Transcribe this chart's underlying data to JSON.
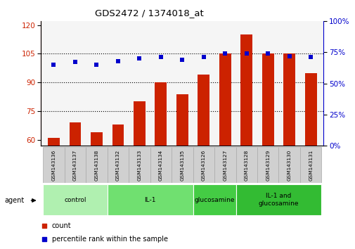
{
  "title": "GDS2472 / 1374018_at",
  "samples": [
    "GSM143136",
    "GSM143137",
    "GSM143138",
    "GSM143132",
    "GSM143133",
    "GSM143134",
    "GSM143135",
    "GSM143126",
    "GSM143127",
    "GSM143128",
    "GSM143129",
    "GSM143130",
    "GSM143131"
  ],
  "counts": [
    61,
    69,
    64,
    68,
    80,
    90,
    84,
    94,
    105,
    115,
    105,
    105,
    95
  ],
  "percentiles": [
    65,
    67,
    65,
    68,
    70,
    71,
    69,
    71,
    74,
    74,
    74,
    72,
    71
  ],
  "groups": [
    {
      "label": "control",
      "start": 0,
      "end": 3,
      "color": "#b0f0b0"
    },
    {
      "label": "IL-1",
      "start": 3,
      "end": 7,
      "color": "#70e070"
    },
    {
      "label": "glucosamine",
      "start": 7,
      "end": 9,
      "color": "#44cc44"
    },
    {
      "label": "IL-1 and\nglucosamine",
      "start": 9,
      "end": 13,
      "color": "#33bb33"
    }
  ],
  "bar_color": "#cc2200",
  "dot_color": "#0000cc",
  "left_ylim": [
    57,
    122
  ],
  "left_yticks": [
    60,
    75,
    90,
    105,
    120
  ],
  "right_ylim": [
    0,
    100
  ],
  "right_yticks": [
    0,
    25,
    50,
    75,
    100
  ],
  "right_ylabel_color": "#0000cc",
  "left_ylabel_color": "#cc2200",
  "grid_color": "black",
  "bg_plot": "#f5f5f5",
  "agent_label": "agent",
  "legend_count_label": "count",
  "legend_pct_label": "percentile rank within the sample",
  "sample_box_color": "#d0d0d0"
}
